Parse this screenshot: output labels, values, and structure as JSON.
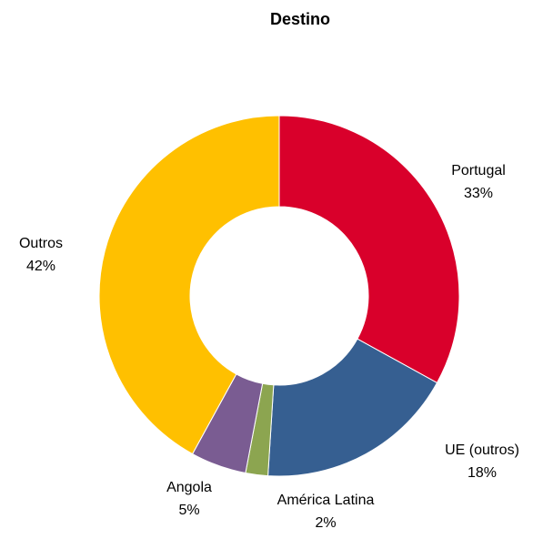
{
  "chart_data": {
    "type": "donut",
    "title": "Destino",
    "categories": [
      "Portugal",
      "UE (outros)",
      "América Latina",
      "Angola",
      "Outros"
    ],
    "values": [
      33,
      18,
      2,
      5,
      42
    ],
    "value_labels": [
      "33%",
      "18%",
      "2%",
      "5%",
      "42%"
    ],
    "colors": [
      "#d9002b",
      "#365f91",
      "#8ca550",
      "#7a5c92",
      "#ffc000"
    ]
  }
}
